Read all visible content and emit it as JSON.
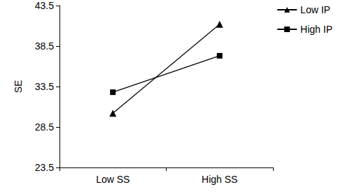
{
  "chart_data": {
    "type": "line",
    "y_label": "SE",
    "categories": [
      "Low SS",
      "High SS"
    ],
    "series": [
      {
        "name": "Low IP",
        "color": "#000000",
        "marker": "triangle",
        "values": [
          30.2,
          41.2
        ]
      },
      {
        "name": "High IP",
        "color": "#000000",
        "marker": "square",
        "values": [
          32.8,
          37.3
        ]
      }
    ],
    "ylim": [
      23.5,
      43.5
    ],
    "yticks": [
      23.5,
      28.5,
      33.5,
      38.5,
      43.5
    ],
    "grid": false,
    "legend": "upper right"
  }
}
